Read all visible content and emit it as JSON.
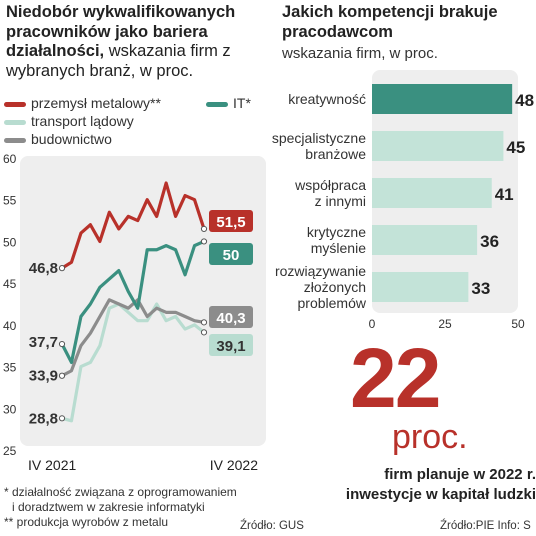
{
  "left": {
    "title_bold": "Niedobór wykwalifikowanych pracowników jako bariera działalności,",
    "title_rest": " wskazania firm z wybranych branż, w proc."
  },
  "right": {
    "title": "Jakich kompetencji brakuje pracodawcom",
    "subtitle": "wskazania firm, w proc."
  },
  "colors": {
    "przemysl": "#b8312a",
    "it": "#3a9080",
    "transport": "#b8dcd0",
    "budownictwo": "#8c8c8c",
    "bar_highlight": "#3a9080",
    "bar": "#c3e3d8",
    "panel": "#eeeeee"
  },
  "chart_data": [
    {
      "type": "line",
      "title": "Niedobór wykwalifikowanych pracowników jako bariera działalności",
      "x_labels": [
        "IV 2021",
        "IV 2022"
      ],
      "ylim": [
        25,
        60
      ],
      "yticks": [
        25,
        30,
        35,
        40,
        45,
        50,
        55,
        60
      ],
      "grid": false,
      "series": [
        {
          "name": "przemysł metalowy**",
          "key": "przemysl",
          "values": [
            46.8,
            47.5,
            51.0,
            52.0,
            50.0,
            53.5,
            51.5,
            53.0,
            52.5,
            55.0,
            53.0,
            57.0,
            53.0,
            55.5,
            55.0,
            51.5
          ],
          "start_label": "46,8",
          "end_label": "51,5"
        },
        {
          "name": "IT*",
          "key": "it",
          "values": [
            37.7,
            35.5,
            41.0,
            42.5,
            44.5,
            45.5,
            46.5,
            44.0,
            42.0,
            49.0,
            49.0,
            49.5,
            49.0,
            46.0,
            49.5,
            50.0
          ],
          "start_label": "37,7",
          "end_label": "50"
        },
        {
          "name": "transport lądowy",
          "key": "transport",
          "values": [
            28.8,
            28.5,
            35.0,
            35.5,
            37.5,
            42.0,
            42.5,
            41.5,
            40.5,
            40.5,
            42.5,
            40.5,
            41.0,
            39.5,
            40.0,
            39.1
          ],
          "start_label": "28,8",
          "end_label": "39,1"
        },
        {
          "name": "budownictwo",
          "key": "budownictwo",
          "values": [
            33.9,
            34.5,
            37.5,
            39.0,
            41.0,
            43.0,
            42.5,
            42.0,
            43.0,
            41.0,
            42.0,
            41.5,
            41.5,
            41.0,
            40.5,
            40.3
          ],
          "start_label": "33,9",
          "end_label": "40,3"
        }
      ]
    },
    {
      "type": "bar",
      "title": "Jakich kompetencji brakuje pracodawcom",
      "orientation": "horizontal",
      "categories": [
        [
          "kreatywność"
        ],
        [
          "specjalistyczne",
          "branżowe"
        ],
        [
          "współpraca",
          "z innymi"
        ],
        [
          "krytyczne",
          "myślenie"
        ],
        [
          "rozwiązywanie",
          "złożonych",
          "problemów"
        ]
      ],
      "values": [
        48,
        45,
        41,
        36,
        33
      ],
      "xlim": [
        0,
        50
      ],
      "xticks": [
        0,
        25,
        50
      ]
    }
  ],
  "big_number": "22",
  "big_unit": "proc.",
  "big_caption": [
    "firm planuje w 2022 r.",
    "inwestycje w kapitał ludzki"
  ],
  "footnotes": [
    "* działalność związana z oprogramowaniem",
    "i doradztwem w zakresie informatyki",
    "** produkcja wyrobów z metalu"
  ],
  "source_left": "Źródło: GUS",
  "source_right": "Źródło:PIE  Info: S"
}
